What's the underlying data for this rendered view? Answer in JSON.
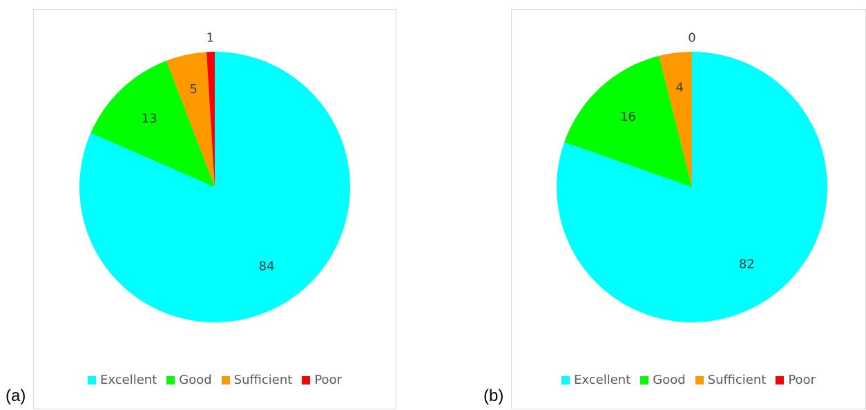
{
  "chart_data": [
    {
      "panel_label": "(a)",
      "type": "pie",
      "categories": [
        "Excellent",
        "Good",
        "Sufficient",
        "Poor"
      ],
      "values": [
        84,
        13,
        5,
        1
      ],
      "data_labels": [
        "84",
        "13",
        "5",
        "1"
      ],
      "colors": [
        "#00FFFF",
        "#00FF00",
        "#FF9900",
        "#FF0000"
      ],
      "legend_placement": "bottom",
      "start_angle_deg": 0,
      "direction": "clockwise"
    },
    {
      "panel_label": "(b)",
      "type": "pie",
      "categories": [
        "Excellent",
        "Good",
        "Sufficient",
        "Poor"
      ],
      "values": [
        82,
        16,
        4,
        0
      ],
      "data_labels": [
        "82",
        "16",
        "4",
        "0"
      ],
      "colors": [
        "#00FFFF",
        "#00FF00",
        "#FF9900",
        "#FF0000"
      ],
      "legend_placement": "bottom",
      "start_angle_deg": 0,
      "direction": "clockwise"
    }
  ]
}
